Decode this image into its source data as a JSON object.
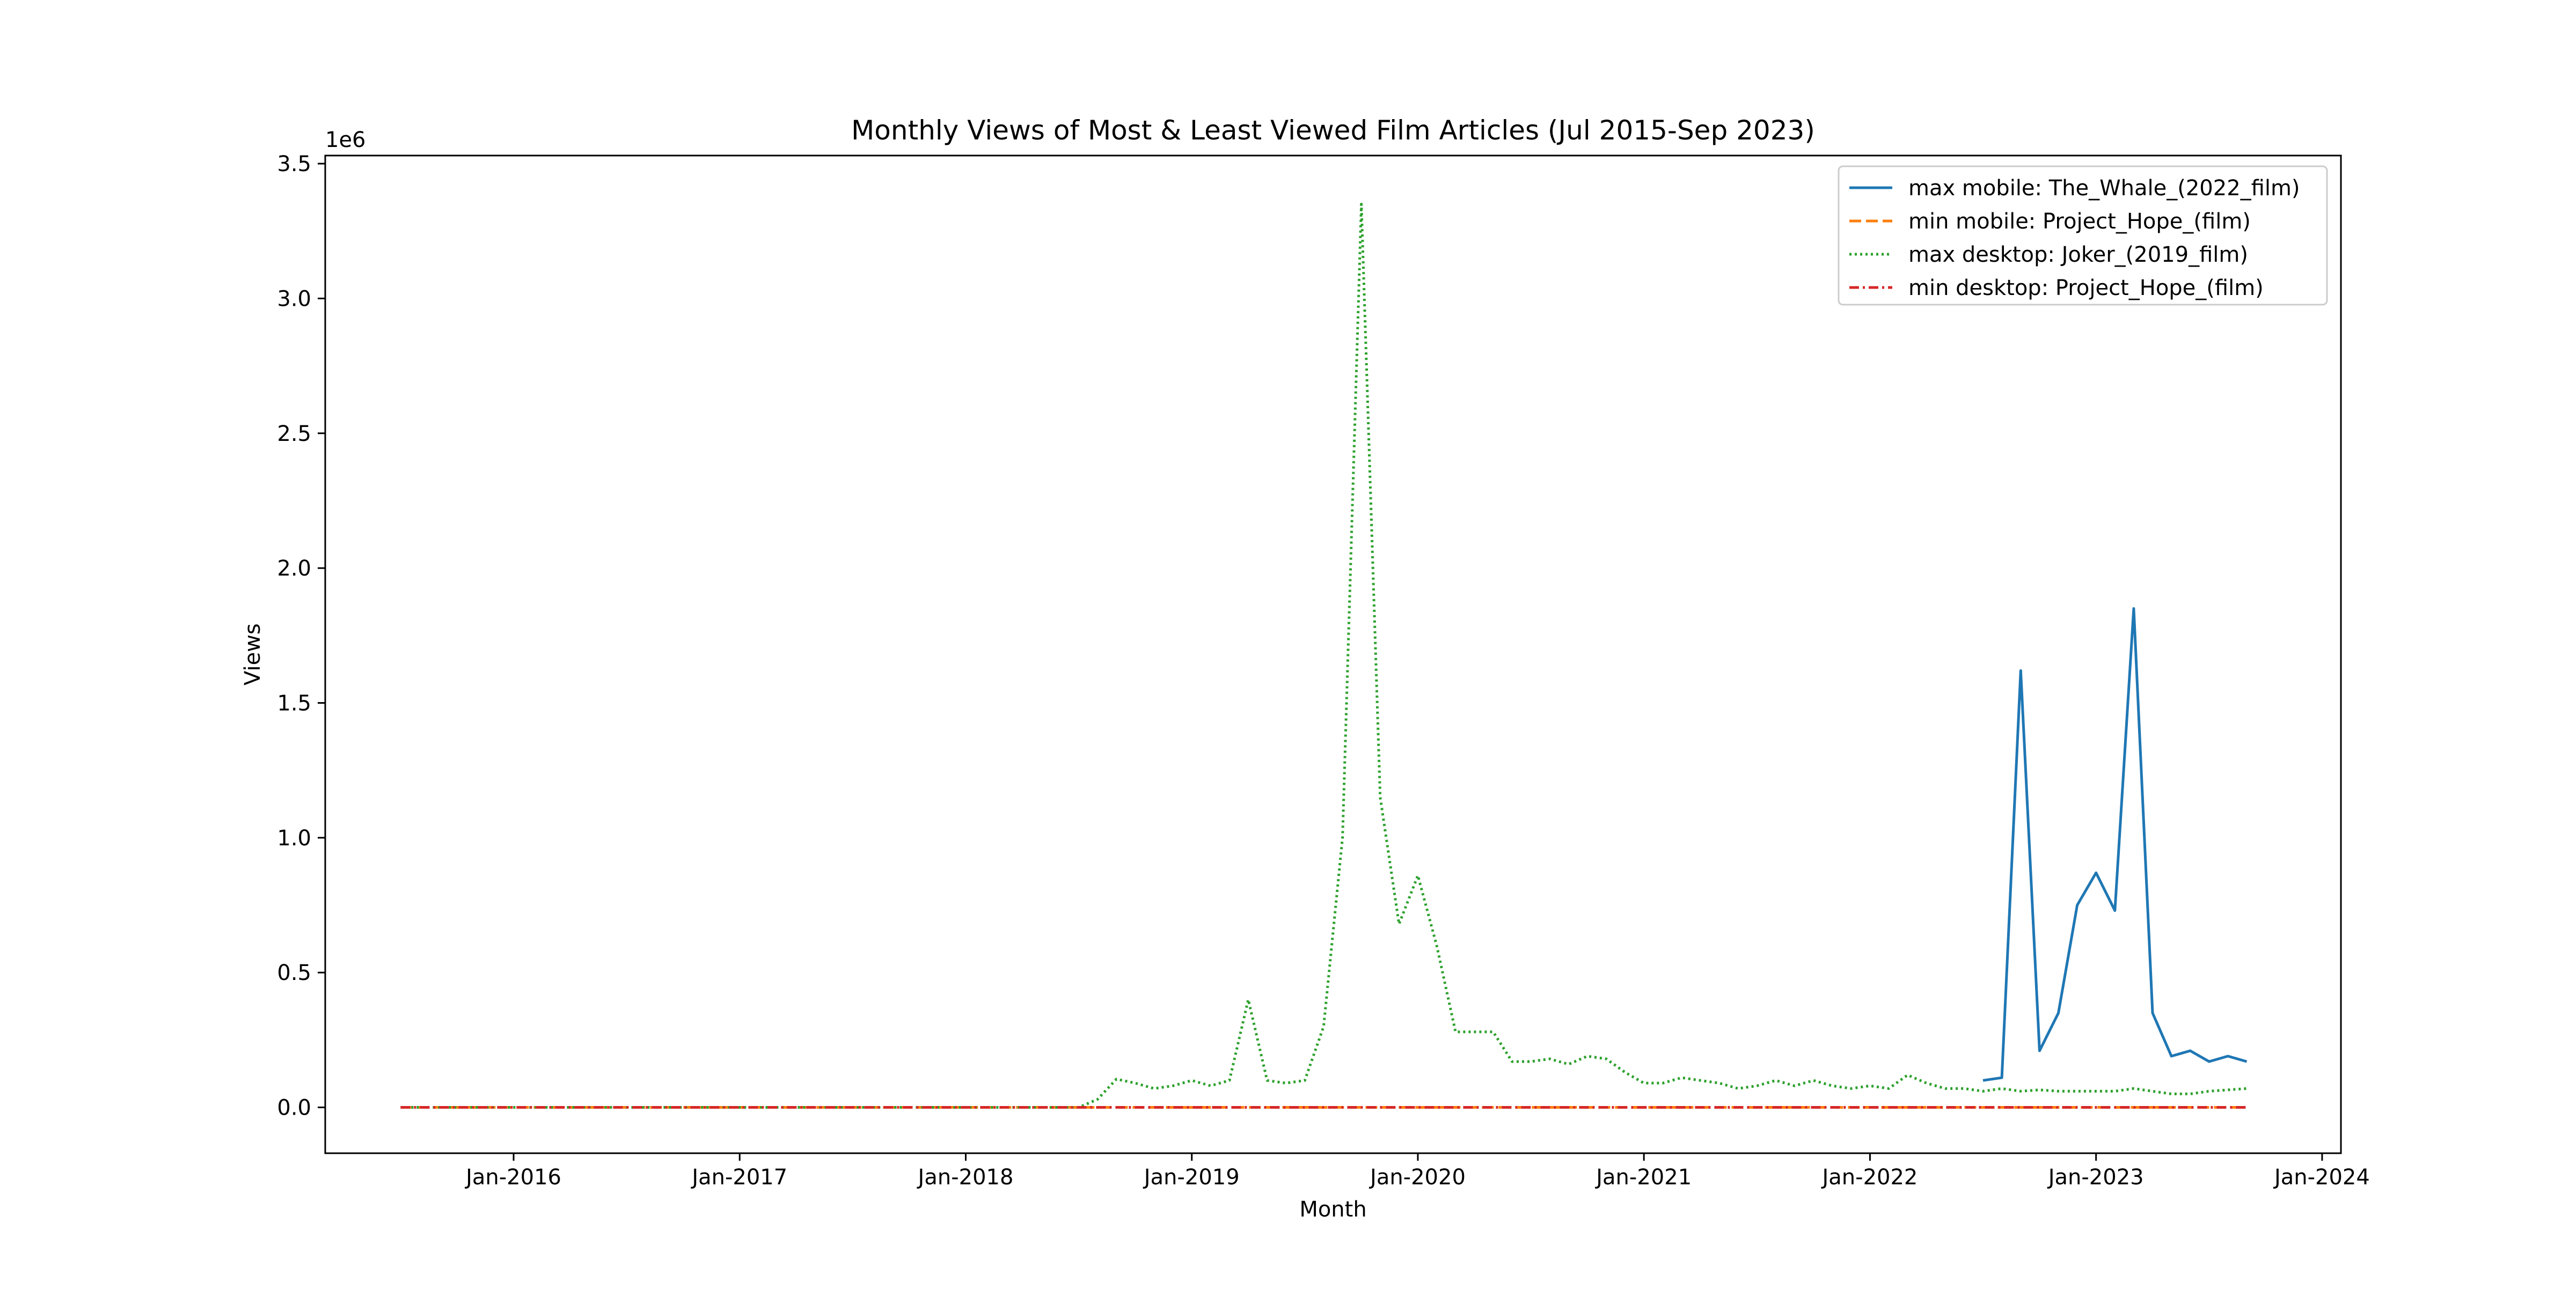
{
  "chart_data": {
    "type": "line",
    "title": "Monthly Views of Most & Least Viewed Film Articles (Jul 2015-Sep 2023)",
    "xlabel": "Month",
    "ylabel": "Views",
    "y_offset_label": "1e6",
    "y_scale": 1000000,
    "xlim": [
      "2015-03",
      "2024-02"
    ],
    "ylim": [
      -0.17,
      3.53
    ],
    "x_ticks": [
      {
        "date": "2016-01",
        "label": "Jan-2016"
      },
      {
        "date": "2017-01",
        "label": "Jan-2017"
      },
      {
        "date": "2018-01",
        "label": "Jan-2018"
      },
      {
        "date": "2019-01",
        "label": "Jan-2019"
      },
      {
        "date": "2020-01",
        "label": "Jan-2020"
      },
      {
        "date": "2021-01",
        "label": "Jan-2021"
      },
      {
        "date": "2022-01",
        "label": "Jan-2022"
      },
      {
        "date": "2023-01",
        "label": "Jan-2023"
      },
      {
        "date": "2024-01",
        "label": "Jan-2024"
      }
    ],
    "y_ticks": [
      {
        "value": 0.0,
        "label": "0.0"
      },
      {
        "value": 0.5,
        "label": "0.5"
      },
      {
        "value": 1.0,
        "label": "1.0"
      },
      {
        "value": 1.5,
        "label": "1.5"
      },
      {
        "value": 2.0,
        "label": "2.0"
      },
      {
        "value": 2.5,
        "label": "2.5"
      },
      {
        "value": 3.0,
        "label": "3.0"
      },
      {
        "value": 3.5,
        "label": "3.5"
      }
    ],
    "grid": false,
    "legend": "top-right",
    "series": [
      {
        "name": "max mobile: The_Whale_(2022_film)",
        "color": "#1f77b4",
        "style": "solid",
        "points": [
          [
            "2022-07",
            0.1
          ],
          [
            "2022-08",
            0.11
          ],
          [
            "2022-09",
            1.62
          ],
          [
            "2022-10",
            0.21
          ],
          [
            "2022-11",
            0.35
          ],
          [
            "2022-12",
            0.75
          ],
          [
            "2023-01",
            0.87
          ],
          [
            "2023-02",
            0.73
          ],
          [
            "2023-03",
            1.85
          ],
          [
            "2023-04",
            0.35
          ],
          [
            "2023-05",
            0.19
          ],
          [
            "2023-06",
            0.21
          ],
          [
            "2023-07",
            0.17
          ],
          [
            "2023-08",
            0.19
          ],
          [
            "2023-09",
            0.17
          ]
        ]
      },
      {
        "name": "min mobile: Project_Hope_(film)",
        "color": "#ff7f0e",
        "style": "dashed",
        "points": [
          [
            "2015-07",
            0.0
          ],
          [
            "2023-09",
            0.0
          ]
        ]
      },
      {
        "name": "max desktop: Joker_(2019_film)",
        "color": "#2ca02c",
        "style": "dotted",
        "points": [
          [
            "2015-07",
            0.0
          ],
          [
            "2018-07",
            0.0
          ],
          [
            "2018-08",
            0.03
          ],
          [
            "2018-09",
            0.105
          ],
          [
            "2018-10",
            0.09
          ],
          [
            "2018-11",
            0.07
          ],
          [
            "2018-12",
            0.08
          ],
          [
            "2019-01",
            0.1
          ],
          [
            "2019-02",
            0.08
          ],
          [
            "2019-03",
            0.1
          ],
          [
            "2019-04",
            0.4
          ],
          [
            "2019-05",
            0.1
          ],
          [
            "2019-06",
            0.09
          ],
          [
            "2019-07",
            0.1
          ],
          [
            "2019-08",
            0.3
          ],
          [
            "2019-09",
            1.0
          ],
          [
            "2019-10",
            3.35
          ],
          [
            "2019-11",
            1.15
          ],
          [
            "2019-12",
            0.68
          ],
          [
            "2020-01",
            0.86
          ],
          [
            "2020-02",
            0.6
          ],
          [
            "2020-03",
            0.28
          ],
          [
            "2020-04",
            0.28
          ],
          [
            "2020-05",
            0.28
          ],
          [
            "2020-06",
            0.17
          ],
          [
            "2020-07",
            0.17
          ],
          [
            "2020-08",
            0.18
          ],
          [
            "2020-09",
            0.16
          ],
          [
            "2020-10",
            0.19
          ],
          [
            "2020-11",
            0.18
          ],
          [
            "2020-12",
            0.13
          ],
          [
            "2021-01",
            0.09
          ],
          [
            "2021-02",
            0.09
          ],
          [
            "2021-03",
            0.11
          ],
          [
            "2021-04",
            0.1
          ],
          [
            "2021-05",
            0.09
          ],
          [
            "2021-06",
            0.07
          ],
          [
            "2021-07",
            0.08
          ],
          [
            "2021-08",
            0.1
          ],
          [
            "2021-09",
            0.08
          ],
          [
            "2021-10",
            0.1
          ],
          [
            "2021-11",
            0.08
          ],
          [
            "2021-12",
            0.07
          ],
          [
            "2022-01",
            0.08
          ],
          [
            "2022-02",
            0.07
          ],
          [
            "2022-03",
            0.12
          ],
          [
            "2022-04",
            0.09
          ],
          [
            "2022-05",
            0.07
          ],
          [
            "2022-06",
            0.07
          ],
          [
            "2022-07",
            0.06
          ],
          [
            "2022-08",
            0.07
          ],
          [
            "2022-09",
            0.06
          ],
          [
            "2022-10",
            0.065
          ],
          [
            "2022-11",
            0.06
          ],
          [
            "2022-12",
            0.06
          ],
          [
            "2023-01",
            0.06
          ],
          [
            "2023-02",
            0.06
          ],
          [
            "2023-03",
            0.07
          ],
          [
            "2023-04",
            0.06
          ],
          [
            "2023-05",
            0.05
          ],
          [
            "2023-06",
            0.05
          ],
          [
            "2023-07",
            0.06
          ],
          [
            "2023-08",
            0.065
          ],
          [
            "2023-09",
            0.07
          ]
        ]
      },
      {
        "name": "min desktop: Project_Hope_(film)",
        "color": "#d62728",
        "style": "dashdot",
        "points": [
          [
            "2015-07",
            0.0
          ],
          [
            "2023-09",
            0.0
          ]
        ]
      }
    ]
  }
}
